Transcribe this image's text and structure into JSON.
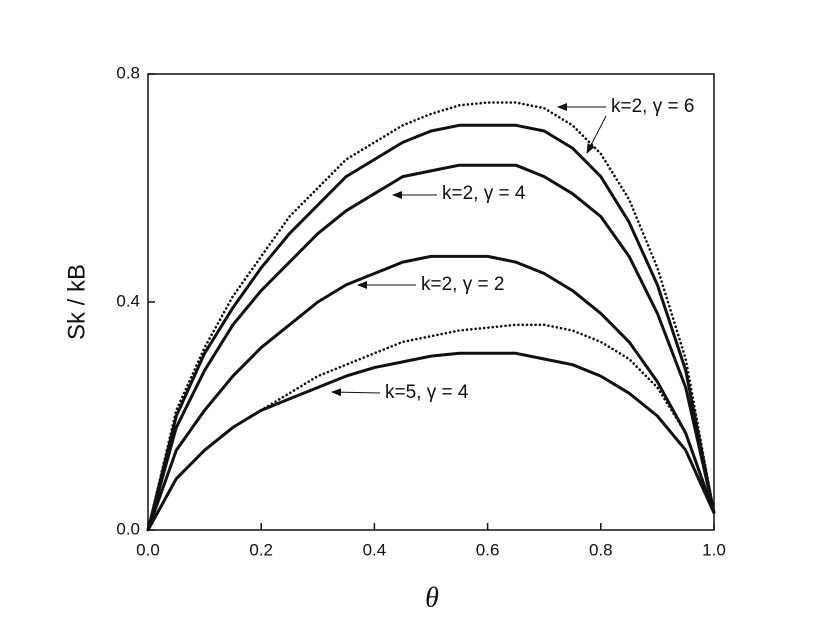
{
  "chart_data": {
    "type": "line",
    "x_label": "θ",
    "y_label": "Sk / kB",
    "x": [
      0,
      0.05,
      0.1,
      0.15,
      0.2,
      0.25,
      0.3,
      0.35,
      0.4,
      0.45,
      0.5,
      0.55,
      0.6,
      0.65,
      0.7,
      0.75,
      0.8,
      0.85,
      0.9,
      0.95,
      1
    ],
    "series": [
      {
        "color": "#111111",
        "style": "dotted",
        "values": [
          0,
          0.21,
          0.32,
          0.41,
          0.48,
          0.55,
          0.6,
          0.65,
          0.68,
          0.71,
          0.73,
          0.745,
          0.75,
          0.75,
          0.74,
          0.71,
          0.66,
          0.58,
          0.46,
          0.3,
          0.03
        ]
      },
      {
        "color": "#111111",
        "style": "solid",
        "values": [
          0,
          0.2,
          0.31,
          0.39,
          0.46,
          0.52,
          0.57,
          0.62,
          0.65,
          0.68,
          0.7,
          0.71,
          0.71,
          0.71,
          0.7,
          0.67,
          0.62,
          0.54,
          0.43,
          0.28,
          0.03
        ]
      },
      {
        "color": "#111111",
        "style": "solid",
        "values": [
          0,
          0.18,
          0.28,
          0.36,
          0.42,
          0.47,
          0.52,
          0.56,
          0.59,
          0.62,
          0.63,
          0.64,
          0.64,
          0.64,
          0.62,
          0.59,
          0.55,
          0.48,
          0.38,
          0.25,
          0.03
        ]
      },
      {
        "color": "#111111",
        "style": "solid",
        "values": [
          0,
          0.14,
          0.21,
          0.27,
          0.32,
          0.36,
          0.4,
          0.43,
          0.45,
          0.47,
          0.48,
          0.48,
          0.48,
          0.47,
          0.45,
          0.42,
          0.38,
          0.33,
          0.26,
          0.17,
          0.03
        ]
      },
      {
        "color": "#111111",
        "style": "dotted",
        "values": [
          0,
          0.09,
          0.14,
          0.18,
          0.21,
          0.24,
          0.27,
          0.29,
          0.31,
          0.33,
          0.34,
          0.35,
          0.355,
          0.36,
          0.36,
          0.35,
          0.33,
          0.3,
          0.25,
          0.17,
          0.03
        ]
      },
      {
        "color": "#111111",
        "style": "solid",
        "values": [
          0,
          0.09,
          0.14,
          0.18,
          0.21,
          0.23,
          0.25,
          0.27,
          0.285,
          0.295,
          0.305,
          0.31,
          0.31,
          0.31,
          0.3,
          0.29,
          0.27,
          0.24,
          0.2,
          0.14,
          0.03
        ]
      }
    ],
    "annotations": [
      "k=2, γ = 6",
      "k=2, γ = 4",
      "k=2, γ = 2",
      "k=5, γ = 4"
    ],
    "xlim": [
      0,
      1
    ],
    "xticks": [
      {
        "value": 0,
        "label": "0.0"
      },
      {
        "value": 0.2,
        "label": "0.2"
      },
      {
        "value": 0.4,
        "label": "0.4"
      },
      {
        "value": 0.6,
        "label": "0.6"
      },
      {
        "value": 0.8,
        "label": "0.8"
      },
      {
        "value": 1,
        "label": "1.0"
      }
    ],
    "ylim": [
      0,
      0.8
    ],
    "yticks": [
      {
        "value": 0,
        "label": "0.0"
      },
      {
        "value": 0.4,
        "label": "0.4"
      },
      {
        "value": 0.8,
        "label": "0.8"
      }
    ],
    "grid": false
  }
}
